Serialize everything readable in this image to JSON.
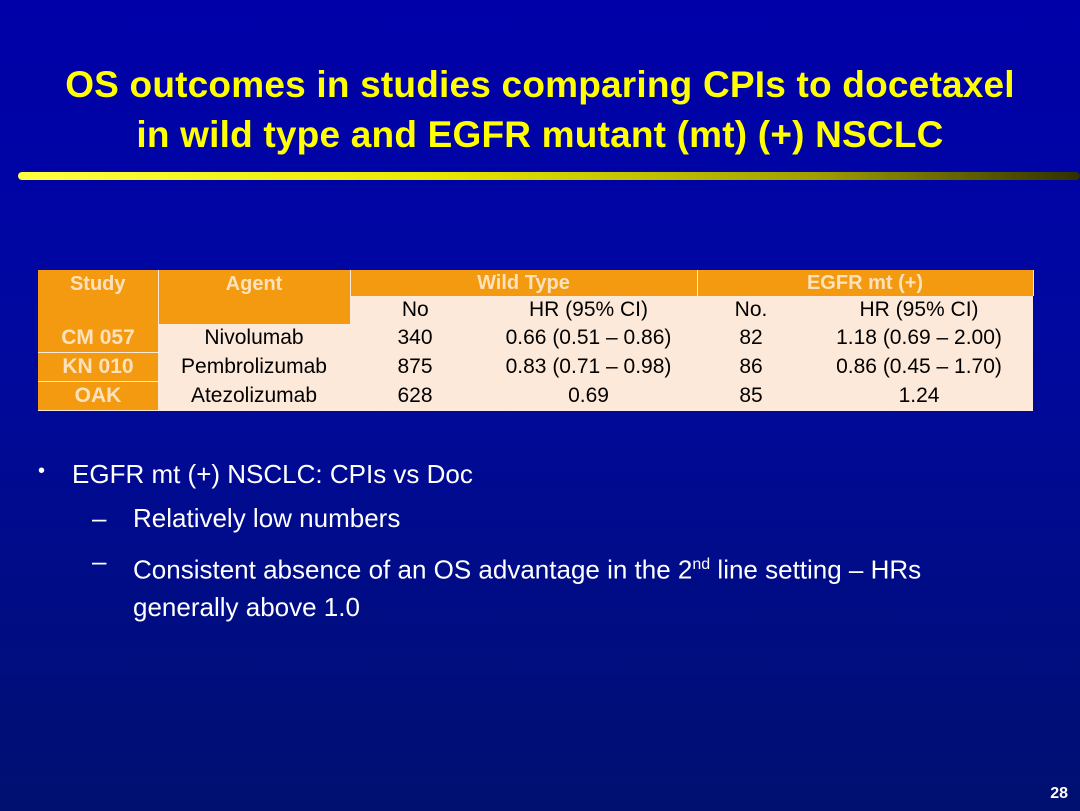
{
  "title": {
    "lines": [
      "OS outcomes in studies comparing CPIs to docetaxel",
      "in wild type and EGFR mutant (mt) (+) NSCLC"
    ]
  },
  "table": {
    "header": [
      "Study",
      "Agent",
      "Wild Type",
      "EGFR mt (+)"
    ],
    "subheader": [
      "No",
      "HR (95% CI)",
      "No.",
      "HR (95% CI)"
    ],
    "rows": [
      [
        "CM 057",
        "Nivolumab",
        "340",
        "0.66 (0.51 – 0.86)",
        "82",
        "1.18 (0.69 – 2.00)"
      ],
      [
        "KN 010",
        "Pembrolizumab",
        "875",
        "0.83 (0.71 – 0.98)",
        "86",
        "0.86 (0.45 – 1.70)"
      ],
      [
        "OAK",
        "Atezolizumab",
        "628",
        "0.69",
        "85",
        "1.24"
      ]
    ]
  },
  "bullets": {
    "main": "EGFR mt (+) NSCLC:  CPIs vs Doc",
    "sub1": "Relatively low numbers",
    "sub2": {
      "before": "Consistent absence of an OS advantage in the 2",
      "sup": "nd",
      "after": " line setting – HRs generally above 1.0"
    }
  },
  "page_number": "28"
}
